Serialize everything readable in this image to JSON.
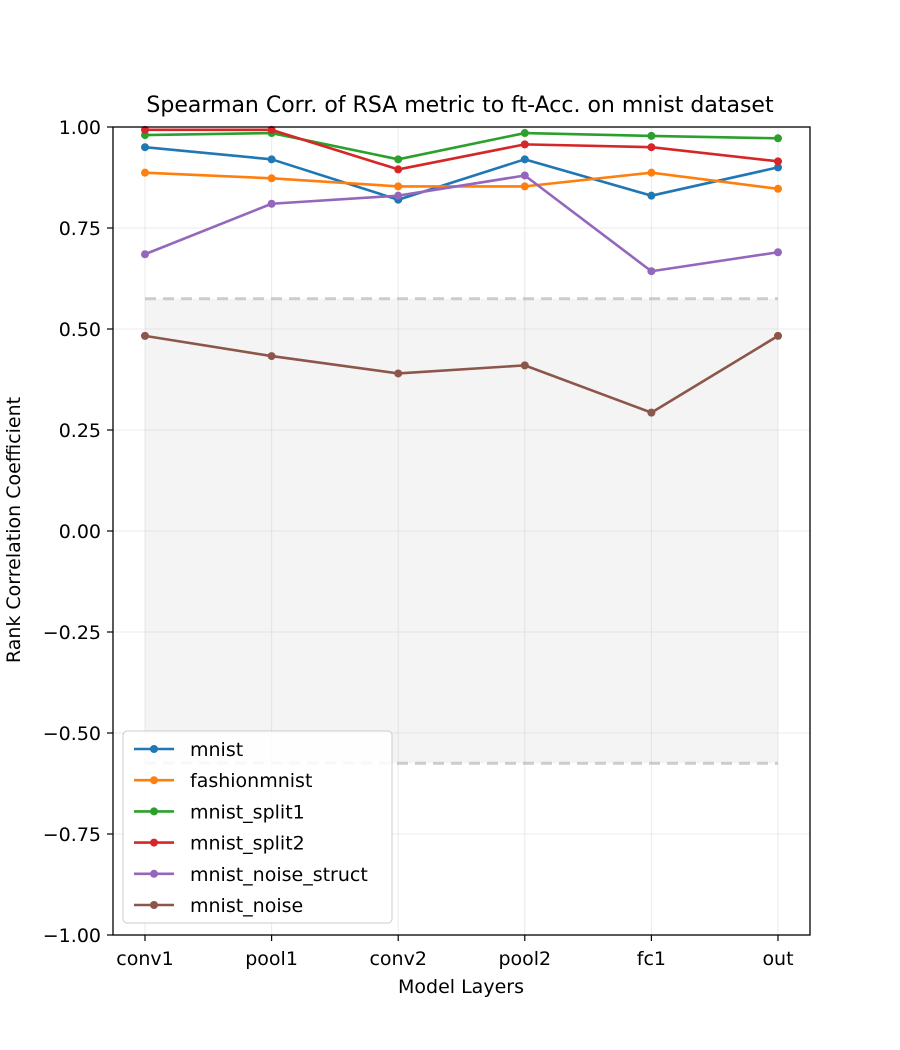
{
  "chart_data": {
    "type": "line",
    "title": "Spearman Corr. of RSA metric to ft-Acc. on mnist dataset",
    "xlabel": "Model Layers",
    "ylabel": "Rank Correlation Coefficient",
    "categories": [
      "conv1",
      "pool1",
      "conv2",
      "pool2",
      "fc1",
      "out"
    ],
    "ylim": [
      -1.0,
      1.0
    ],
    "yticks": [
      "1.00",
      "0.75",
      "0.50",
      "0.25",
      "0.00",
      "−0.25",
      "−0.50",
      "−0.75",
      "−1.00"
    ],
    "ytick_values": [
      1.0,
      0.75,
      0.5,
      0.25,
      0.0,
      -0.25,
      -0.5,
      -0.75,
      -1.0
    ],
    "grid": true,
    "shaded_band": {
      "from": -0.575,
      "to": 0.575
    },
    "legend_position": "lower-left",
    "series": [
      {
        "name": "mnist",
        "color": "#1f77b4",
        "values": [
          0.95,
          0.92,
          0.82,
          0.92,
          0.83,
          0.9
        ]
      },
      {
        "name": "fashionmnist",
        "color": "#ff7f0e",
        "values": [
          0.887,
          0.873,
          0.853,
          0.853,
          0.887,
          0.847
        ]
      },
      {
        "name": "mnist_split1",
        "color": "#2ca02c",
        "values": [
          0.98,
          0.985,
          0.92,
          0.985,
          0.978,
          0.972
        ]
      },
      {
        "name": "mnist_split2",
        "color": "#d62728",
        "values": [
          0.993,
          0.993,
          0.895,
          0.957,
          0.95,
          0.915
        ]
      },
      {
        "name": "mnist_noise_struct",
        "color": "#9467bd",
        "values": [
          0.685,
          0.81,
          0.83,
          0.88,
          0.643,
          0.69
        ]
      },
      {
        "name": "mnist_noise",
        "color": "#8c564b",
        "values": [
          0.483,
          0.433,
          0.39,
          0.41,
          0.293,
          0.483
        ]
      }
    ]
  }
}
